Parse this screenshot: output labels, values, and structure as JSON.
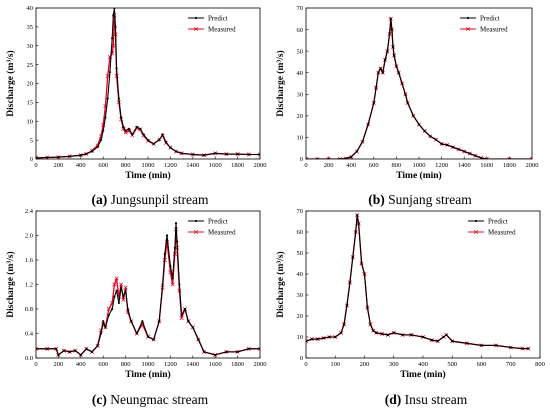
{
  "chart_data": [
    {
      "id": "a",
      "type": "line",
      "caption_letter": "(a)",
      "caption_text": "Jungsunpil stream",
      "xlabel": "Time (min)",
      "ylabel": "Discharge (m³/s)",
      "xlim": [
        0,
        2000
      ],
      "ylim": [
        0,
        40
      ],
      "xticks": [
        "0",
        "200",
        "400",
        "600",
        "800",
        "1000",
        "1200",
        "1400",
        "1600",
        "1800",
        "2000"
      ],
      "yticks": [
        "0",
        "5",
        "10",
        "15",
        "20",
        "25",
        "30",
        "35",
        "40"
      ],
      "legend": [
        "Predict",
        "Measured"
      ],
      "legend_position": "top-right",
      "series": [
        {
          "name": "Predict",
          "x": [
            0,
            100,
            200,
            300,
            400,
            450,
            500,
            550,
            580,
            600,
            620,
            640,
            660,
            680,
            690,
            700,
            710,
            720,
            740,
            760,
            780,
            800,
            830,
            860,
            900,
            930,
            960,
            1000,
            1050,
            1100,
            1130,
            1160,
            1200,
            1250,
            1300,
            1400,
            1500,
            1600,
            1700,
            1800,
            1900,
            2000
          ],
          "y": [
            0.3,
            0.4,
            0.5,
            0.7,
            1.0,
            1.4,
            2.0,
            3.2,
            5.0,
            7.5,
            11.0,
            16.0,
            23.0,
            32.0,
            38.0,
            40.0,
            35.0,
            24.0,
            16.0,
            11.0,
            8.5,
            7.5,
            8.0,
            6.5,
            8.5,
            8.0,
            6.5,
            5.0,
            4.0,
            5.0,
            6.5,
            4.5,
            3.0,
            2.0,
            1.5,
            1.2,
            1.0,
            1.5,
            1.3,
            1.3,
            1.2,
            1.2
          ]
        },
        {
          "name": "Measured",
          "x": [
            0,
            100,
            200,
            300,
            400,
            450,
            500,
            550,
            580,
            600,
            620,
            640,
            660,
            680,
            690,
            700,
            710,
            720,
            740,
            760,
            780,
            800,
            830,
            860,
            900,
            930,
            960,
            1000,
            1050,
            1100,
            1130,
            1160,
            1200,
            1250,
            1300,
            1400,
            1500,
            1600,
            1700,
            1800,
            1900,
            2000
          ],
          "y": [
            0.3,
            0.4,
            0.5,
            0.7,
            1.0,
            1.3,
            2.2,
            3.6,
            6.0,
            9.0,
            14.0,
            22.0,
            27.0,
            28.0,
            30.0,
            38.0,
            33.0,
            22.0,
            15.0,
            10.5,
            8.0,
            7.0,
            7.5,
            6.3,
            8.2,
            7.8,
            6.2,
            4.8,
            4.0,
            5.2,
            6.2,
            4.3,
            3.0,
            2.0,
            1.5,
            1.2,
            1.0,
            1.5,
            1.3,
            1.3,
            1.2,
            1.2
          ]
        }
      ]
    },
    {
      "id": "b",
      "type": "line",
      "caption_letter": "(b)",
      "caption_text": "Sunjang stream",
      "xlabel": "Time (min)",
      "ylabel": "Discharge (m³/s)",
      "xlim": [
        0,
        2000
      ],
      "ylim": [
        0,
        70
      ],
      "xticks": [
        "0",
        "200",
        "400",
        "600",
        "800",
        "1000",
        "1200",
        "1400",
        "1600",
        "1800",
        "2000"
      ],
      "yticks": [
        "0",
        "10",
        "20",
        "30",
        "40",
        "50",
        "60",
        "70"
      ],
      "legend": [
        "Predict",
        "Measured"
      ],
      "legend_position": "top-right",
      "series": [
        {
          "name": "Predict",
          "x": [
            0,
            100,
            200,
            300,
            350,
            400,
            450,
            500,
            550,
            600,
            620,
            640,
            660,
            680,
            700,
            720,
            740,
            750,
            760,
            770,
            780,
            800,
            820,
            850,
            880,
            900,
            950,
            1000,
            1050,
            1100,
            1150,
            1200,
            1250,
            1300,
            1350,
            1400,
            1450,
            1500,
            1550,
            1600,
            1800,
            2000
          ],
          "y": [
            0,
            0,
            0,
            0,
            0.2,
            1.0,
            3.5,
            8.0,
            16.0,
            26.0,
            33.0,
            40.0,
            42.0,
            40.0,
            46.0,
            50.0,
            58.0,
            65.0,
            60.0,
            52.0,
            48.0,
            43.0,
            40.0,
            35.0,
            30.0,
            26.0,
            20.0,
            16.0,
            13.0,
            10.5,
            9.0,
            7.0,
            6.5,
            5.5,
            4.5,
            3.5,
            2.5,
            1.5,
            0.5,
            0,
            0,
            0
          ]
        },
        {
          "name": "Measured",
          "x": [
            0,
            100,
            200,
            300,
            350,
            400,
            450,
            500,
            550,
            600,
            620,
            640,
            660,
            680,
            700,
            720,
            740,
            750,
            760,
            770,
            780,
            800,
            820,
            850,
            880,
            900,
            950,
            1000,
            1050,
            1100,
            1150,
            1200,
            1250,
            1300,
            1350,
            1400,
            1450,
            1500,
            1550,
            1600,
            1800,
            2000
          ],
          "y": [
            0,
            0,
            0,
            0,
            0.2,
            1.0,
            3.5,
            8.0,
            16.0,
            26.0,
            33.0,
            40.0,
            42.0,
            40.0,
            46.0,
            50.0,
            58.0,
            65.0,
            60.0,
            52.0,
            48.0,
            43.0,
            40.0,
            35.0,
            30.0,
            26.0,
            20.0,
            16.0,
            13.0,
            10.5,
            9.0,
            7.0,
            6.5,
            5.5,
            4.5,
            3.5,
            2.5,
            1.5,
            0.5,
            0,
            0,
            0
          ]
        }
      ]
    },
    {
      "id": "c",
      "type": "line",
      "caption_letter": "(c)",
      "caption_text": "Neungmac stream",
      "xlabel": "Time (min)",
      "ylabel": "Discharge (m³/s)",
      "xlim": [
        0,
        2000
      ],
      "ylim": [
        0,
        2.4
      ],
      "xticks": [
        "0",
        "200",
        "400",
        "600",
        "800",
        "1000",
        "1200",
        "1400",
        "1600",
        "1800",
        "2000"
      ],
      "yticks": [
        "0.0",
        "0.4",
        "0.8",
        "1.2",
        "1.6",
        "2.0",
        "2.4"
      ],
      "legend": [
        "Predict",
        "Measured"
      ],
      "legend_position": "top-right",
      "series": [
        {
          "name": "Predict",
          "x": [
            0,
            100,
            180,
            200,
            250,
            300,
            350,
            400,
            450,
            500,
            550,
            580,
            600,
            620,
            650,
            680,
            700,
            720,
            740,
            760,
            780,
            800,
            820,
            850,
            900,
            950,
            1000,
            1050,
            1100,
            1130,
            1150,
            1170,
            1200,
            1220,
            1240,
            1250,
            1260,
            1280,
            1300,
            1330,
            1360,
            1400,
            1450,
            1500,
            1600,
            1700,
            1800,
            1900,
            2000
          ],
          "y": [
            0.15,
            0.15,
            0.15,
            0.05,
            0.12,
            0.1,
            0.12,
            0.05,
            0.15,
            0.1,
            0.2,
            0.4,
            0.6,
            0.5,
            0.7,
            0.8,
            1.0,
            1.1,
            0.9,
            1.15,
            1.0,
            1.1,
            0.8,
            0.6,
            0.4,
            0.6,
            0.35,
            0.3,
            0.6,
            1.2,
            1.7,
            2.0,
            1.5,
            1.3,
            1.8,
            2.2,
            1.9,
            1.2,
            0.7,
            0.8,
            0.6,
            0.5,
            0.3,
            0.1,
            0.05,
            0.1,
            0.1,
            0.15,
            0.15
          ]
        },
        {
          "name": "Measured",
          "x": [
            0,
            100,
            180,
            200,
            250,
            300,
            350,
            400,
            450,
            500,
            550,
            580,
            600,
            620,
            650,
            680,
            700,
            720,
            740,
            760,
            780,
            800,
            820,
            850,
            900,
            950,
            1000,
            1050,
            1100,
            1130,
            1150,
            1170,
            1200,
            1220,
            1240,
            1250,
            1260,
            1280,
            1300,
            1330,
            1360,
            1400,
            1450,
            1500,
            1600,
            1700,
            1800,
            1900,
            2000
          ],
          "y": [
            0.15,
            0.15,
            0.15,
            0.05,
            0.12,
            0.1,
            0.12,
            0.05,
            0.15,
            0.1,
            0.2,
            0.45,
            0.55,
            0.5,
            0.8,
            0.9,
            1.2,
            1.3,
            1.0,
            1.2,
            0.95,
            1.15,
            0.75,
            0.6,
            0.4,
            0.55,
            0.35,
            0.3,
            0.6,
            1.15,
            1.6,
            1.9,
            1.4,
            1.2,
            1.7,
            2.1,
            1.8,
            1.1,
            0.65,
            0.8,
            0.6,
            0.5,
            0.3,
            0.1,
            0.05,
            0.1,
            0.1,
            0.15,
            0.15
          ]
        }
      ]
    },
    {
      "id": "d",
      "type": "line",
      "caption_letter": "(d)",
      "caption_text": "Insu stream",
      "xlabel": "Time (min)",
      "ylabel": "Discharge (m³/s)",
      "xlim": [
        0,
        800
      ],
      "ylim": [
        0,
        70
      ],
      "xticks": [
        "0",
        "100",
        "200",
        "300",
        "400",
        "500",
        "600",
        "700",
        "800"
      ],
      "yticks": [
        "0",
        "10",
        "20",
        "30",
        "40",
        "50",
        "60",
        "70"
      ],
      "legend": [
        "Predict",
        "Measured"
      ],
      "legend_position": "top-right",
      "series": [
        {
          "name": "Predict",
          "x": [
            0,
            20,
            40,
            60,
            80,
            100,
            120,
            130,
            140,
            150,
            160,
            170,
            175,
            180,
            190,
            200,
            210,
            220,
            230,
            240,
            260,
            280,
            300,
            330,
            360,
            400,
            430,
            450,
            470,
            480,
            500,
            550,
            600,
            650,
            700,
            740,
            760
          ],
          "y": [
            8,
            9,
            9,
            9.5,
            10,
            10,
            12,
            16,
            25,
            36,
            48,
            60,
            68,
            64,
            45,
            40,
            24,
            16,
            13,
            12,
            11.5,
            11,
            12,
            11,
            11,
            10,
            8.5,
            8,
            10,
            11,
            8,
            7,
            6,
            6,
            5,
            4.5,
            4.5
          ]
        },
        {
          "name": "Measured",
          "x": [
            0,
            20,
            40,
            60,
            80,
            100,
            120,
            130,
            140,
            150,
            160,
            170,
            175,
            180,
            190,
            200,
            210,
            220,
            230,
            240,
            260,
            280,
            300,
            330,
            360,
            400,
            430,
            450,
            470,
            480,
            500,
            550,
            600,
            650,
            700,
            740,
            760
          ],
          "y": [
            8,
            9,
            9,
            9.5,
            10,
            10,
            12,
            16,
            25,
            36,
            48,
            60,
            68,
            64,
            45,
            40,
            24,
            16,
            13,
            12,
            11.5,
            11,
            12,
            11,
            11,
            10,
            8.5,
            8,
            10,
            11,
            8,
            7,
            6,
            6,
            5,
            4.5,
            4.5
          ]
        }
      ]
    }
  ]
}
